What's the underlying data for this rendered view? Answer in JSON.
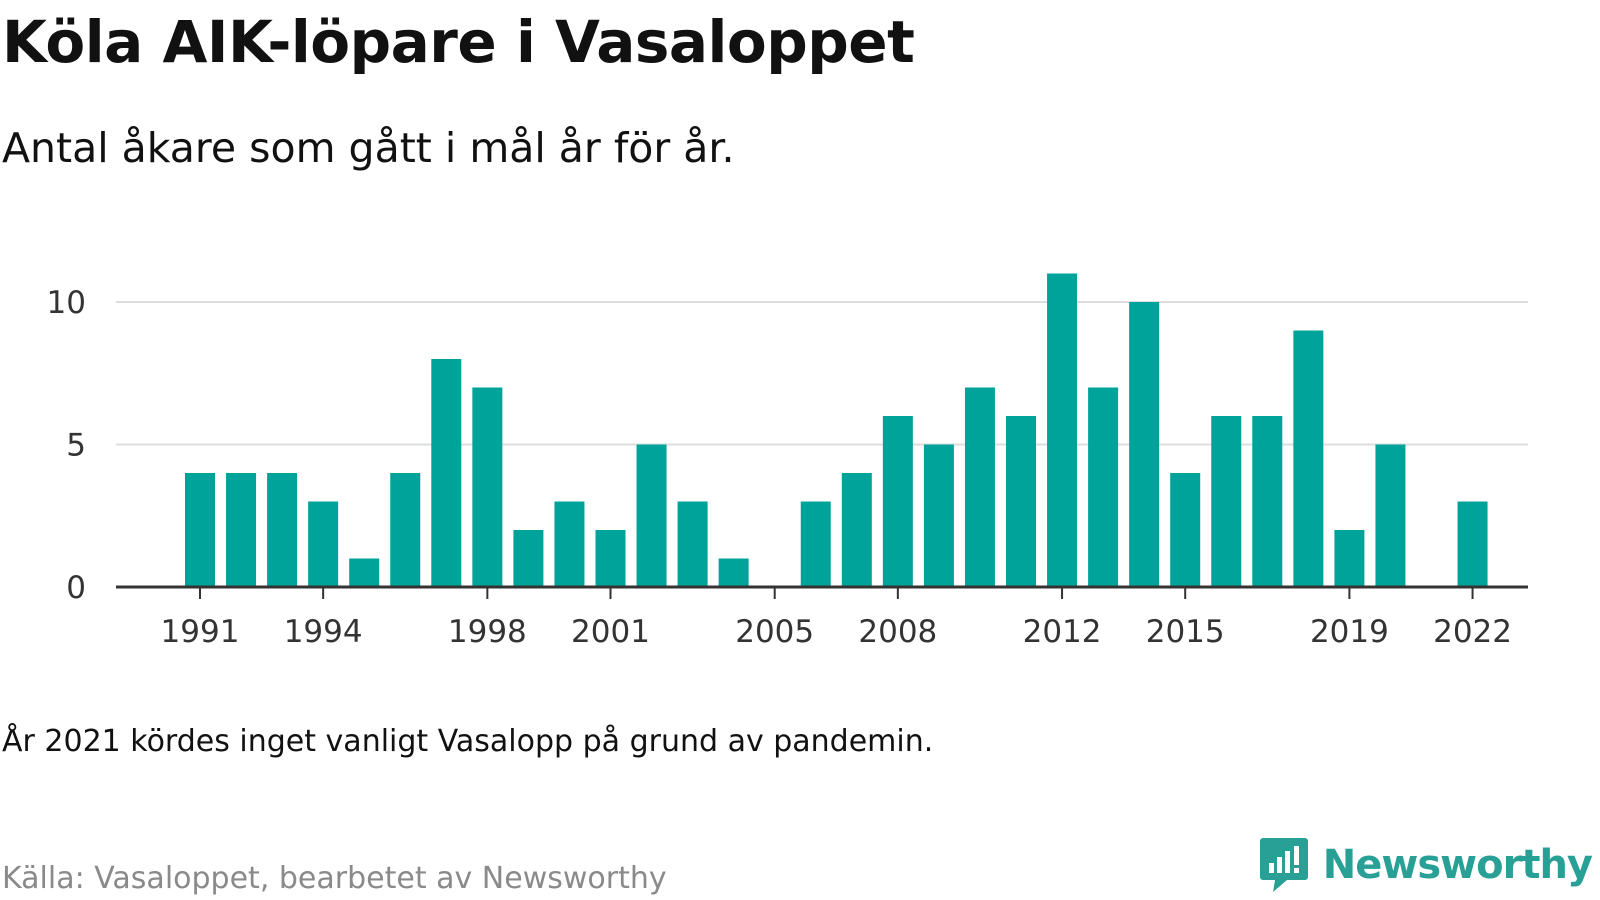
{
  "title": "Köla AIK-löpare i Vasaloppet",
  "subtitle": "Antal åkare som gått i mål år för år.",
  "note": "År 2021 kördes inget vanligt Vasalopp på grund av pandemin.",
  "source": "Källa: Vasaloppet, bearbetet av Newsworthy",
  "brand": {
    "name": "Newsworthy",
    "icon": "newsworthy-logo-icon",
    "color": "#29a096"
  },
  "chart_data": {
    "type": "bar",
    "title": "Köla AIK-löpare i Vasaloppet",
    "subtitle": "Antal åkare som gått i mål år för år.",
    "xlabel": "",
    "ylabel": "",
    "categories": [
      1991,
      1992,
      1993,
      1994,
      1995,
      1996,
      1997,
      1998,
      1999,
      2000,
      2001,
      2002,
      2003,
      2004,
      2005,
      2006,
      2007,
      2008,
      2009,
      2010,
      2011,
      2012,
      2013,
      2014,
      2015,
      2016,
      2017,
      2018,
      2019,
      2020,
      2021,
      2022
    ],
    "values": [
      4,
      4,
      4,
      3,
      1,
      4,
      8,
      7,
      2,
      3,
      2,
      5,
      3,
      1,
      0,
      3,
      4,
      6,
      5,
      7,
      6,
      11,
      7,
      10,
      4,
      6,
      6,
      9,
      2,
      5,
      0,
      3
    ],
    "x_tick_labels": [
      "1991",
      "1994",
      "1998",
      "2001",
      "2005",
      "2008",
      "2012",
      "2015",
      "2019",
      "2022"
    ],
    "y_ticks": [
      0,
      5,
      10
    ],
    "ylim": [
      0,
      11
    ],
    "grid": true,
    "bar_color": "#00a39a",
    "grid_color": "#dddddd",
    "axis_color": "#333333"
  }
}
